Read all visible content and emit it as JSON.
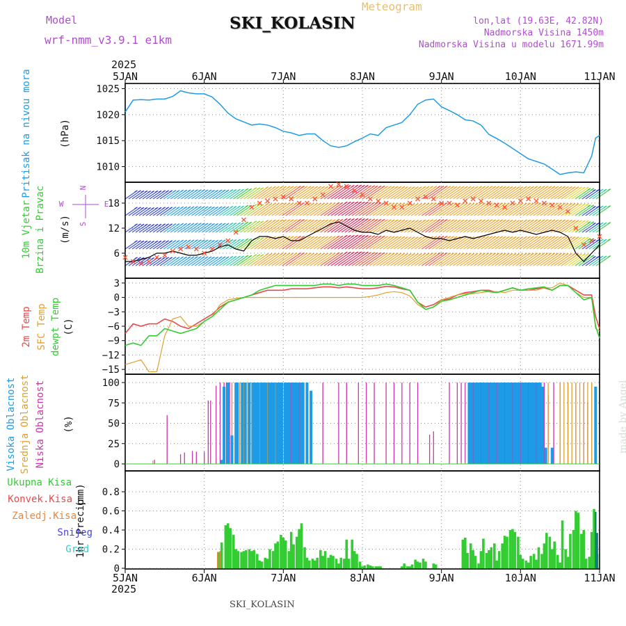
{
  "header": {
    "model_label": "Model",
    "model_name": "wrf-nmm_v3.9.1 e1km",
    "title": "SKI_KOLASIN",
    "meteogram_label": "Meteogram",
    "lonlat": "lon,lat (19.63E, 42.82N)",
    "elevation": "Nadmorska Visina 1450m",
    "model_elevation": "Nadmorska Visina u modelu 1671.99m",
    "year_top": "2025",
    "year_bottom": "2025",
    "footer": "SKI_KOLASIN",
    "watermark": "made by Angel"
  },
  "colors": {
    "pressure": "#1e9be6",
    "temp2m": "#e84a4a",
    "sfc_temp": "#e0a030",
    "dewpoint": "#33cc33",
    "wind_obs": "#000000",
    "wind_mod": "#ff5533",
    "cloud_high": "#1e9be6",
    "cloud_mid": "#e0a030",
    "cloud_low": "#cc33aa",
    "precip_total": "#33cc33",
    "precip_conv": "#e84a4a",
    "precip_frozen": "#e8863a",
    "precip_snow": "#4444dd",
    "precip_hail": "#33cccc"
  },
  "chart_data": [
    {
      "type": "line",
      "panel": "pressure",
      "ylabel": "Pritisak na nivou mora",
      "unit": "(hPa)",
      "yticks": [
        1010,
        1015,
        1020,
        1025
      ],
      "ylim": [
        1007,
        1026
      ],
      "x_days": [
        0,
        0.1,
        0.2,
        0.3,
        0.4,
        0.5,
        0.6,
        0.7,
        0.8,
        0.9,
        1.0,
        1.1,
        1.2,
        1.3,
        1.4,
        1.5,
        1.6,
        1.7,
        1.8,
        1.9,
        2.0,
        2.1,
        2.2,
        2.3,
        2.4,
        2.5,
        2.6,
        2.7,
        2.8,
        2.9,
        3.0,
        3.1,
        3.2,
        3.3,
        3.4,
        3.5,
        3.6,
        3.7,
        3.8,
        3.9,
        4.0,
        4.1,
        4.2,
        4.3,
        4.4,
        4.5,
        4.6,
        4.7,
        4.8,
        4.9,
        5.0,
        5.1,
        5.2,
        5.3,
        5.4,
        5.5,
        5.6,
        5.7,
        5.8,
        5.9,
        5.95,
        6.0
      ],
      "values": [
        1020.5,
        1022.8,
        1022.9,
        1022.8,
        1023.0,
        1023.0,
        1023.5,
        1024.6,
        1024.2,
        1024.0,
        1024.0,
        1023.4,
        1022.0,
        1020.3,
        1019.2,
        1018.6,
        1018.0,
        1018.2,
        1018.0,
        1017.5,
        1016.8,
        1016.5,
        1016.0,
        1016.3,
        1016.3,
        1015.0,
        1014.0,
        1013.7,
        1014.0,
        1014.8,
        1015.5,
        1016.3,
        1016.0,
        1017.5,
        1018.0,
        1018.5,
        1020.0,
        1022.0,
        1022.8,
        1023.0,
        1021.5,
        1020.8,
        1020.0,
        1019.0,
        1018.8,
        1018.0,
        1016.2,
        1015.4,
        1014.5,
        1013.5,
        1012.5,
        1011.5,
        1011.0,
        1010.5,
        1009.5,
        1008.5,
        1008.8,
        1009.0,
        1008.8,
        1012.0,
        1015.5,
        1016.0
      ]
    },
    {
      "type": "line",
      "panel": "wind",
      "ylabel": "10m Vjetar",
      "ylabel2": "Brzina i Pravac",
      "unit": "(m/s)",
      "compass": "N ^ E <-|-> W v S",
      "compass_n": "N",
      "compass_s": "S",
      "compass_e": "E",
      "compass_w": "W",
      "yticks": [
        6,
        12,
        18
      ],
      "ylim": [
        0,
        23
      ],
      "x_days": [
        0,
        0.1,
        0.2,
        0.3,
        0.4,
        0.5,
        0.6,
        0.7,
        0.8,
        0.9,
        1.0,
        1.1,
        1.2,
        1.3,
        1.4,
        1.5,
        1.6,
        1.7,
        1.8,
        1.9,
        2.0,
        2.1,
        2.2,
        2.3,
        2.4,
        2.5,
        2.6,
        2.7,
        2.8,
        2.9,
        3.0,
        3.1,
        3.2,
        3.3,
        3.4,
        3.5,
        3.6,
        3.7,
        3.8,
        3.9,
        4.0,
        4.1,
        4.2,
        4.3,
        4.4,
        4.5,
        4.6,
        4.7,
        4.8,
        4.9,
        5.0,
        5.1,
        5.2,
        5.3,
        5.4,
        5.5,
        5.6,
        5.7,
        5.8,
        5.9,
        6.0
      ],
      "series": [
        {
          "name": "",
          "style": "mean",
          "values": [
            4,
            4,
            4.5,
            5,
            6,
            6,
            6.5,
            6,
            5.5,
            5.5,
            6,
            6.5,
            7.5,
            8,
            7,
            6.5,
            9,
            10,
            10,
            9.5,
            10,
            9,
            9,
            10,
            11,
            12,
            13,
            13.5,
            12.5,
            11.5,
            11,
            11,
            10.5,
            11.5,
            11,
            11.5,
            12,
            11,
            10,
            9.5,
            9.5,
            9,
            9.5,
            10,
            9.5,
            10,
            10.5,
            11,
            11.5,
            11,
            11.5,
            11,
            10.5,
            11,
            11.5,
            11,
            10,
            6,
            4,
            6,
            8
          ]
        },
        {
          "name": "",
          "style": "gust",
          "values": [
            5,
            4,
            3.5,
            4,
            5,
            5.5,
            6.5,
            7,
            7.5,
            7,
            6,
            7,
            8,
            9,
            11,
            14,
            17,
            18,
            18.5,
            19,
            19.5,
            19,
            18,
            18,
            19,
            20,
            22,
            22.5,
            22,
            21,
            20,
            19,
            18.5,
            18,
            17,
            17,
            18,
            19,
            19.5,
            19,
            18,
            18,
            17.5,
            18.5,
            19,
            18.5,
            18,
            17.5,
            17,
            18,
            18.5,
            19,
            18.5,
            18,
            17.5,
            17,
            16,
            12,
            8,
            9,
            10
          ]
        }
      ]
    },
    {
      "type": "line",
      "panel": "temperature",
      "ylabel_a": "2m Temp",
      "ylabel_b": "SFC Temp",
      "ylabel_c": "dewpt Temp",
      "unit": "(C)",
      "yticks": [
        -15,
        -12,
        -9,
        -6,
        -3,
        0,
        3
      ],
      "ylim": [
        -16,
        4
      ],
      "x_days": [
        0,
        0.1,
        0.2,
        0.3,
        0.4,
        0.5,
        0.6,
        0.7,
        0.8,
        0.9,
        1.0,
        1.1,
        1.2,
        1.3,
        1.4,
        1.5,
        1.6,
        1.7,
        1.8,
        1.9,
        2.0,
        2.1,
        2.2,
        2.3,
        2.4,
        2.5,
        2.6,
        2.7,
        2.8,
        2.9,
        3.0,
        3.1,
        3.2,
        3.3,
        3.4,
        3.5,
        3.6,
        3.7,
        3.8,
        3.9,
        4.0,
        4.1,
        4.2,
        4.3,
        4.4,
        4.5,
        4.6,
        4.7,
        4.8,
        4.9,
        5.0,
        5.1,
        5.2,
        5.3,
        5.4,
        5.5,
        5.6,
        5.7,
        5.8,
        5.9,
        5.95,
        6.0
      ],
      "series": [
        {
          "name": "2m Temp",
          "key": "temp2m",
          "values": [
            -7.5,
            -5.5,
            -6,
            -5.5,
            -5.5,
            -4.5,
            -5,
            -6,
            -6.5,
            -5.5,
            -4.5,
            -3.5,
            -2,
            -1,
            -0.5,
            0,
            0.5,
            1,
            1.5,
            1.5,
            1.5,
            1.8,
            1.8,
            1.8,
            2,
            2.2,
            2.2,
            2,
            2.2,
            2,
            1.8,
            1.8,
            2,
            2.3,
            2.2,
            1.8,
            1.5,
            -1,
            -2,
            -1.5,
            -0.5,
            -0.3,
            0.5,
            1,
            1.2,
            1.5,
            1.5,
            1,
            1.5,
            2,
            1.5,
            1.5,
            1.8,
            2,
            1.5,
            2.5,
            2.5,
            1.5,
            0.5,
            0.5,
            -4,
            -6.5
          ]
        },
        {
          "name": "SFC Temp",
          "key": "sfc_temp",
          "values": [
            -14,
            -13.5,
            -13,
            -15.5,
            -15.5,
            -8,
            -4.5,
            -4,
            -6,
            -6,
            -5,
            -4,
            -1.5,
            -0.5,
            -0.2,
            0,
            0,
            0,
            0,
            0,
            0,
            0,
            0,
            0,
            0,
            0,
            0,
            0,
            0,
            0,
            0,
            0.2,
            0.5,
            1,
            1.2,
            1,
            0.3,
            -1.5,
            -2.5,
            -2,
            -0.5,
            0,
            0.5,
            0.8,
            0.8,
            1,
            1.2,
            1.2,
            1,
            1.5,
            1.5,
            1.5,
            1.5,
            2,
            2,
            3,
            2.5,
            1,
            0,
            0,
            -6.5,
            -7
          ]
        },
        {
          "name": "dewpt Temp",
          "key": "dewpoint",
          "values": [
            -10,
            -9.5,
            -10,
            -8,
            -8,
            -6.5,
            -7,
            -7.5,
            -7,
            -6.5,
            -5,
            -4,
            -2.5,
            -1,
            -0.5,
            0,
            0.5,
            1.5,
            2,
            2.5,
            2.5,
            2.5,
            2.5,
            2.5,
            2.5,
            2.8,
            2.8,
            2.5,
            2.8,
            2.8,
            2.5,
            2.5,
            2.5,
            2.8,
            2.5,
            2,
            1.5,
            -1,
            -2.5,
            -2,
            -0.8,
            -0.5,
            0,
            0.5,
            1,
            1.5,
            1.2,
            1,
            1.5,
            2,
            1.5,
            1.8,
            2,
            2.2,
            1.5,
            2.5,
            2.5,
            1,
            -0.5,
            0,
            -6,
            -8.5
          ]
        }
      ]
    },
    {
      "type": "bar",
      "panel": "clouds",
      "ylabel_a": "Visoka Oblacnost",
      "ylabel_b": "Srednja Oblacnost",
      "ylabel_c": "Niska Oblacnost",
      "unit": "(%)",
      "yticks": [
        0,
        25,
        50,
        75,
        100
      ],
      "ylim": [
        0,
        100
      ],
      "low_x": [
        0.37,
        0.53,
        0.7,
        0.75,
        0.85,
        0.9,
        1.0,
        1.05,
        1.08,
        1.15,
        1.2,
        1.25,
        1.28,
        1.32,
        1.35,
        1.4,
        1.45,
        1.5,
        1.55,
        1.6,
        1.95,
        2.1,
        2.2,
        2.3,
        2.5,
        2.7,
        2.8,
        2.95,
        3.05,
        3.15,
        3.3,
        3.4,
        3.5,
        3.6,
        3.7,
        3.85,
        3.9,
        4.1,
        4.2,
        4.25,
        4.3,
        4.4,
        4.5,
        4.6,
        4.7,
        4.8,
        4.9,
        5.0,
        5.05,
        5.1,
        5.15,
        5.2,
        5.25,
        5.3,
        5.35,
        5.42,
        5.5,
        5.6,
        5.7,
        5.8,
        5.85,
        5.9
      ],
      "low_values": [
        5,
        60,
        12,
        14,
        16,
        15,
        15,
        78,
        78,
        96,
        100,
        100,
        100,
        100,
        100,
        100,
        100,
        100,
        100,
        100,
        100,
        100,
        100,
        100,
        100,
        100,
        100,
        100,
        100,
        100,
        100,
        100,
        100,
        100,
        100,
        36,
        40,
        100,
        100,
        100,
        100,
        100,
        100,
        100,
        100,
        100,
        100,
        100,
        100,
        100,
        100,
        100,
        100,
        100,
        85,
        100,
        100,
        100,
        100,
        100,
        75,
        100
      ],
      "mid_x": [
        0.35,
        1.35,
        1.45,
        1.5,
        1.55,
        1.6,
        1.7,
        1.8,
        1.9,
        3.05,
        4.25,
        4.3,
        5.35,
        5.5,
        5.55,
        5.6,
        5.65,
        5.7,
        5.75,
        5.8,
        5.85,
        5.9
      ],
      "mid_values": [
        4,
        100,
        100,
        100,
        100,
        100,
        100,
        100,
        100,
        2,
        2,
        2,
        100,
        100,
        100,
        100,
        100,
        100,
        100,
        100,
        100,
        100
      ],
      "high_x": [
        1.22,
        1.25,
        1.3,
        1.35,
        1.4,
        1.42,
        1.48,
        1.52,
        1.57,
        1.62,
        1.65,
        1.68,
        1.72,
        1.75,
        1.78,
        1.82,
        1.85,
        1.88,
        1.92,
        1.95,
        1.98,
        2.02,
        2.05,
        2.08,
        2.12,
        2.15,
        2.18,
        2.22,
        2.25,
        2.3,
        2.35,
        4.35,
        4.38,
        4.42,
        4.45,
        4.48,
        4.52,
        4.55,
        4.58,
        4.62,
        4.65,
        4.68,
        4.72,
        4.75,
        4.78,
        4.82,
        4.85,
        4.88,
        4.92,
        4.95,
        4.98,
        5.02,
        5.05,
        5.08,
        5.12,
        5.15,
        5.18,
        5.22,
        5.25,
        5.28,
        5.32,
        5.4,
        5.95
      ],
      "high_values": [
        5,
        95,
        100,
        35,
        100,
        100,
        100,
        100,
        100,
        100,
        100,
        100,
        100,
        100,
        100,
        100,
        100,
        100,
        100,
        100,
        100,
        100,
        100,
        100,
        100,
        100,
        100,
        100,
        100,
        100,
        90,
        100,
        100,
        100,
        100,
        100,
        100,
        100,
        100,
        100,
        100,
        100,
        100,
        100,
        100,
        100,
        100,
        100,
        100,
        100,
        100,
        100,
        100,
        100,
        100,
        100,
        100,
        100,
        100,
        95,
        20,
        20,
        95
      ]
    },
    {
      "type": "bar",
      "panel": "precipitation",
      "legend": [
        "Ukupna Kisa",
        "Konvek.Kisa",
        "Zaledj.Kisa",
        "Snijeg",
        "Grad"
      ],
      "ylabel": "1hr Precip",
      "unit": "(mm)",
      "yticks": [
        0,
        0.2,
        0.4,
        0.6,
        0.8
      ],
      "ylim": [
        0,
        0.95
      ],
      "total_x": [
        1.18,
        1.22,
        1.27,
        1.3,
        1.33,
        1.37,
        1.4,
        1.43,
        1.47,
        1.5,
        1.53,
        1.57,
        1.6,
        1.63,
        1.67,
        1.7,
        1.73,
        1.77,
        1.8,
        1.83,
        1.87,
        1.9,
        1.93,
        1.97,
        2.0,
        2.03,
        2.07,
        2.1,
        2.13,
        2.17,
        2.2,
        2.23,
        2.27,
        2.3,
        2.33,
        2.37,
        2.4,
        2.43,
        2.47,
        2.5,
        2.53,
        2.57,
        2.6,
        2.63,
        2.67,
        2.7,
        2.73,
        2.77,
        2.8,
        2.83,
        2.87,
        2.9,
        2.93,
        2.97,
        3.0,
        3.03,
        3.07,
        3.1,
        3.13,
        3.17,
        3.2,
        3.23,
        3.5,
        3.53,
        3.57,
        3.6,
        3.63,
        3.67,
        3.7,
        3.73,
        3.77,
        3.8,
        3.9,
        3.93,
        4.27,
        4.3,
        4.33,
        4.37,
        4.4,
        4.43,
        4.47,
        4.5,
        4.53,
        4.57,
        4.6,
        4.63,
        4.67,
        4.7,
        4.73,
        4.77,
        4.8,
        4.83,
        4.87,
        4.9,
        4.93,
        4.97,
        5.0,
        5.03,
        5.07,
        5.1,
        5.13,
        5.17,
        5.2,
        5.23,
        5.27,
        5.3,
        5.33,
        5.37,
        5.4,
        5.43,
        5.47,
        5.5,
        5.53,
        5.57,
        5.6,
        5.63,
        5.67,
        5.7,
        5.73,
        5.77,
        5.8,
        5.83,
        5.87,
        5.9,
        5.93,
        5.97
      ],
      "total_values": [
        0.17,
        0.27,
        0.45,
        0.47,
        0.42,
        0.35,
        0.2,
        0.18,
        0.17,
        0.18,
        0.19,
        0.2,
        0.18,
        0.19,
        0.15,
        0.08,
        0.07,
        0.11,
        0.1,
        0.2,
        0.18,
        0.26,
        0.28,
        0.35,
        0.32,
        0.29,
        0.18,
        0.38,
        0.25,
        0.33,
        0.41,
        0.47,
        0.22,
        0.11,
        0.08,
        0.1,
        0.08,
        0.11,
        0.19,
        0.13,
        0.18,
        0.11,
        0.14,
        0.13,
        0.1,
        0.05,
        0.11,
        0.1,
        0.3,
        0.1,
        0.3,
        0.18,
        0.15,
        0.07,
        0.02,
        0.03,
        0.04,
        0.03,
        0.02,
        0.02,
        0.02,
        0.02,
        0.02,
        0.05,
        0.02,
        0.02,
        0.04,
        0.09,
        0.07,
        0.06,
        0.1,
        0.07,
        0.05,
        0.04,
        0.3,
        0.32,
        0.16,
        0.26,
        0.19,
        0.13,
        0.05,
        0.18,
        0.31,
        0.16,
        0.19,
        0.22,
        0.26,
        0.08,
        0.18,
        0.26,
        0.34,
        0.33,
        0.4,
        0.41,
        0.38,
        0.33,
        0.14,
        0.1,
        0.08,
        0.06,
        0.13,
        0.15,
        0.09,
        0.22,
        0.15,
        0.26,
        0.37,
        0.33,
        0.2,
        0.28,
        0.14,
        0.06,
        0.5,
        0.2,
        0.12,
        0.36,
        0.4,
        0.6,
        0.58,
        0.36,
        0.4,
        0.1,
        0.12,
        0.38,
        0.62,
        0.15,
        0.08,
        0.05
      ],
      "conv_x": [
        1.17,
        1.2
      ],
      "conv_values": [
        0.17,
        0.18
      ],
      "snow_x": [
        5.97
      ],
      "snow_values": [
        0.37
      ],
      "hail_x": [
        5.95
      ],
      "hail_values": [
        0.59
      ]
    }
  ],
  "x_axis": {
    "ticks": [
      "5JAN",
      "6JAN",
      "7JAN",
      "8JAN",
      "9JAN",
      "10JAN",
      "11JAN"
    ]
  }
}
